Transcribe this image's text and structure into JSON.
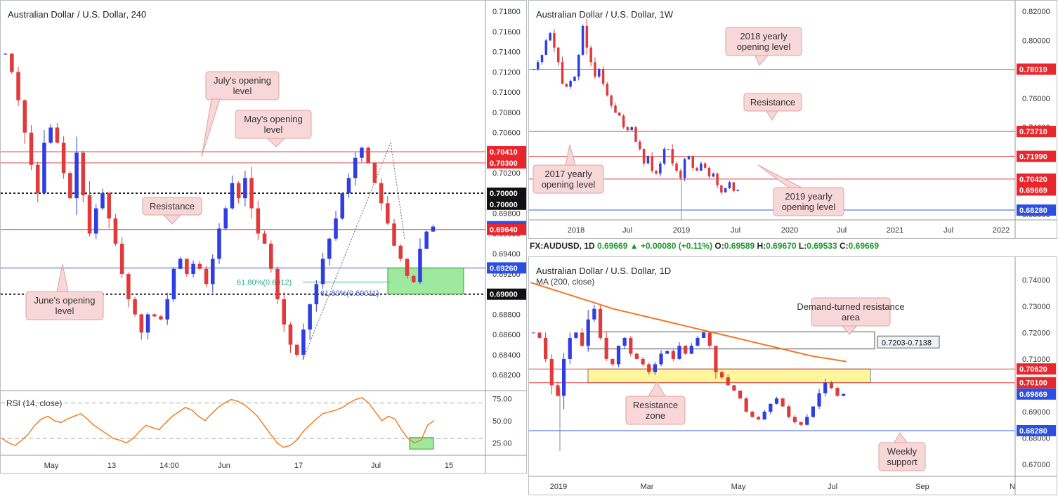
{
  "chart_data": [
    {
      "title": "Australian Dollar / U.S. Dollar, 240",
      "type": "candlestick",
      "y_axis_ticks": [
        "0.71800",
        "0.71600",
        "0.71400",
        "0.71200",
        "0.71000",
        "0.70800",
        "0.70600",
        "0.70400",
        "0.70200",
        "0.70000",
        "0.69800",
        "0.69600",
        "0.69400",
        "0.69200",
        "0.69000",
        "0.68800",
        "0.68600",
        "0.68400",
        "0.68200"
      ],
      "x_axis_labels": [
        "May",
        "13",
        "14:00",
        "Jun",
        "17",
        "Jul",
        "15"
      ],
      "ylim": [
        0.6808,
        0.7185
      ],
      "price_tags": [
        {
          "value": "0.70410",
          "price": 0.7041,
          "style": "red"
        },
        {
          "value": "0.70300",
          "price": 0.703,
          "style": "red"
        },
        {
          "value": "0.70000",
          "price": 0.7,
          "style": "black"
        },
        {
          "value": "0.70000",
          "price": 0.6989,
          "style": "black"
        },
        {
          "value": "0.69669",
          "price": 0.69669,
          "style": "blue"
        },
        {
          "value": "0.69640",
          "price": 0.6964,
          "style": "red"
        },
        {
          "value": "0.69260",
          "price": 0.6926,
          "style": "blue"
        },
        {
          "value": "0.69000",
          "price": 0.69,
          "style": "black"
        }
      ],
      "levels": [
        {
          "price": 0.7041,
          "color": "#e04848",
          "style": "solid"
        },
        {
          "price": 0.703,
          "color": "#e04848",
          "style": "solid"
        },
        {
          "price": 0.7,
          "color": "#222222",
          "style": "dotted"
        },
        {
          "price": 0.6964,
          "color": "#e04848",
          "style": "solid"
        },
        {
          "price": 0.6926,
          "color": "#3b5bdb",
          "style": "solid"
        },
        {
          "price": 0.69,
          "color": "#222222",
          "style": "dotted"
        }
      ],
      "annotations": [
        "July's opening level",
        "May's opening level",
        "Resistance",
        "June's opening level"
      ],
      "fib_labels": [
        "61.80%(0.6912)",
        "61.80%(0.69011)"
      ],
      "close_path": [
        0.7138,
        0.712,
        0.7092,
        0.706,
        0.7028,
        0.7,
        0.705,
        0.7065,
        0.705,
        0.702,
        0.6995,
        0.704,
        0.6998,
        0.696,
        0.6985,
        0.7,
        0.6975,
        0.695,
        0.692,
        0.6895,
        0.688,
        0.6862,
        0.688,
        0.6878,
        0.6875,
        0.6895,
        0.6925,
        0.6935,
        0.692,
        0.693,
        0.6925,
        0.691,
        0.6935,
        0.6965,
        0.6985,
        0.701,
        0.6995,
        0.7015,
        0.6985,
        0.696,
        0.695,
        0.6925,
        0.6895,
        0.687,
        0.685,
        0.684,
        0.6865,
        0.689,
        0.691,
        0.6935,
        0.6955,
        0.6975,
        0.7,
        0.7015,
        0.7035,
        0.7045,
        0.703,
        0.701,
        0.699,
        0.697,
        0.6948,
        0.6935,
        0.6918,
        0.6912,
        0.6945,
        0.6962,
        0.69669
      ],
      "rsi": {
        "label": "RSI (14, close)",
        "ticks": [
          "75.00",
          "50.00",
          "25.00"
        ],
        "levels": [
          70,
          30
        ],
        "values": [
          30,
          25,
          22,
          28,
          35,
          45,
          52,
          55,
          50,
          48,
          52,
          55,
          58,
          52,
          45,
          40,
          35,
          30,
          28,
          25,
          30,
          38,
          45,
          42,
          40,
          48,
          55,
          60,
          65,
          62,
          55,
          50,
          58,
          65,
          70,
          74,
          72,
          68,
          62,
          55,
          45,
          35,
          25,
          20,
          22,
          28,
          38,
          45,
          52,
          58,
          60,
          62,
          65,
          70,
          74,
          76,
          70,
          60,
          50,
          55,
          52,
          40,
          30,
          25,
          28,
          45,
          50
        ]
      }
    },
    {
      "title": "Australian Dollar / U.S. Dollar, 1W",
      "type": "candlestick",
      "y_axis_ticks": [
        "0.82000",
        "0.80000",
        "0.78000",
        "0.76000",
        "0.74000",
        "0.72000",
        "0.70000",
        "0.68000"
      ],
      "x_axis_labels": [
        "2018",
        "Jul",
        "2019",
        "Jul",
        "2020",
        "Jul",
        "2021",
        "Jul",
        "2022"
      ],
      "ylim": [
        0.677,
        0.8235
      ],
      "price_tags": [
        {
          "value": "0.78010",
          "price": 0.7801,
          "style": "red"
        },
        {
          "value": "0.73710",
          "price": 0.7371,
          "style": "red"
        },
        {
          "value": "0.71990",
          "price": 0.7199,
          "style": "red"
        },
        {
          "value": "0.70420",
          "price": 0.7042,
          "style": "red"
        },
        {
          "value": "0.69669",
          "price": 0.69669,
          "style": "red"
        },
        {
          "value": "0.68280",
          "price": 0.6828,
          "style": "blue"
        }
      ],
      "levels": [
        {
          "price": 0.7801,
          "color": "#e04848",
          "style": "solid"
        },
        {
          "price": 0.7371,
          "color": "#e04848",
          "style": "solid"
        },
        {
          "price": 0.7199,
          "color": "#e04848",
          "style": "solid"
        },
        {
          "price": 0.7042,
          "color": "#e04848",
          "style": "solid"
        },
        {
          "price": 0.6828,
          "color": "#3b5bdb",
          "style": "solid"
        }
      ],
      "annotations": [
        "2018 yearly opening level",
        "Resistance",
        "2017 yearly opening level",
        "2019 yearly opening level"
      ],
      "close_path": [
        0.78,
        0.785,
        0.79,
        0.8,
        0.805,
        0.795,
        0.785,
        0.77,
        0.768,
        0.772,
        0.775,
        0.79,
        0.81,
        0.795,
        0.785,
        0.775,
        0.78,
        0.77,
        0.762,
        0.755,
        0.75,
        0.748,
        0.74,
        0.738,
        0.74,
        0.73,
        0.725,
        0.715,
        0.72,
        0.71,
        0.708,
        0.715,
        0.725,
        0.725,
        0.715,
        0.71,
        0.705,
        0.718,
        0.72,
        0.712,
        0.71,
        0.715,
        0.712,
        0.706,
        0.708,
        0.7,
        0.695,
        0.698,
        0.702,
        0.696,
        0.69669
      ]
    },
    {
      "title": "Australian Dollar / U.S. Dollar, 1D",
      "type": "candlestick",
      "info_bar": {
        "symbol": "FX:AUDUSD, 1D",
        "last": "0.69669",
        "change": "+0.00080 (+0.11%)",
        "open_label": "O:",
        "open": "0.69589",
        "high_label": "H:",
        "high": "0.69670",
        "low_label": "L:",
        "low": "0.69533",
        "close_label": "C:",
        "close": "0.69669"
      },
      "indicator_label": "MA (200, close)",
      "y_axis_ticks": [
        "0.74000",
        "0.73000",
        "0.72000",
        "0.71000",
        "0.70000",
        "0.69000",
        "0.68000",
        "0.67000"
      ],
      "x_axis_labels": [
        "2019",
        "Mar",
        "May",
        "Jul",
        "Sep",
        "N"
      ],
      "ylim": [
        0.666,
        0.7465
      ],
      "price_tags": [
        {
          "value": "0.70620",
          "price": 0.7062,
          "style": "red"
        },
        {
          "value": "0.70100",
          "price": 0.701,
          "style": "red"
        },
        {
          "value": "0.69669",
          "price": 0.69669,
          "style": "blue"
        },
        {
          "value": "0.68280",
          "price": 0.6828,
          "style": "blue"
        }
      ],
      "levels": [
        {
          "price": 0.7062,
          "color": "#e04848",
          "style": "solid"
        },
        {
          "price": 0.701,
          "color": "#e04848",
          "style": "solid"
        },
        {
          "price": 0.6828,
          "color": "#3b5bdb",
          "style": "solid"
        }
      ],
      "zones": [
        {
          "label": "0.7203-0.7138",
          "top": 0.7203,
          "bottom": 0.7138,
          "fill": "#ffffff"
        },
        {
          "label": "",
          "top": 0.7062,
          "bottom": 0.701,
          "fill": "#fff59a"
        }
      ],
      "annotations": [
        "Demand-turned resistance area",
        "Resistance zone",
        "Weekly support"
      ],
      "ma200": [
        0.739,
        0.737,
        0.735,
        0.733,
        0.731,
        0.729,
        0.7275,
        0.726,
        0.7245,
        0.723,
        0.7215,
        0.72,
        0.7185,
        0.717,
        0.7155,
        0.714,
        0.7125,
        0.711,
        0.71,
        0.709
      ],
      "close_path": [
        0.72,
        0.718,
        0.71,
        0.7,
        0.696,
        0.71,
        0.718,
        0.72,
        0.715,
        0.725,
        0.729,
        0.718,
        0.71,
        0.708,
        0.715,
        0.718,
        0.712,
        0.71,
        0.708,
        0.705,
        0.708,
        0.712,
        0.713,
        0.71,
        0.715,
        0.712,
        0.715,
        0.718,
        0.72,
        0.715,
        0.705,
        0.703,
        0.7,
        0.698,
        0.695,
        0.69,
        0.688,
        0.687,
        0.69,
        0.693,
        0.695,
        0.692,
        0.688,
        0.686,
        0.685,
        0.688,
        0.692,
        0.697,
        0.701,
        0.699,
        0.696,
        0.69669
      ]
    }
  ]
}
